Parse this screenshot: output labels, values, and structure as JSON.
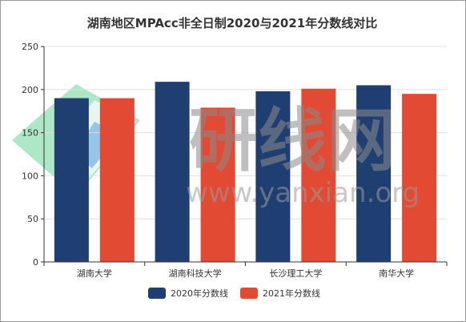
{
  "chart_data": {
    "type": "bar",
    "title": "湖南地区MPAcc非全日制2020与2021年分数线对比",
    "categories": [
      "湖南大学",
      "湖南科技大学",
      "长沙理工大学",
      "南华大学"
    ],
    "series": [
      {
        "name": "2020年分数线",
        "values": [
          190,
          209,
          198,
          205
        ],
        "color": "#1f3f73"
      },
      {
        "name": "2021年分数线",
        "values": [
          190,
          179,
          201,
          195
        ],
        "color": "#e24a33"
      }
    ],
    "ylim": [
      0,
      250
    ],
    "yticks": [
      0,
      50,
      100,
      150,
      200,
      250
    ],
    "grid": true,
    "legend": "bottom-center"
  },
  "watermark": {
    "text": "研线网",
    "url": "www.yanxian.org",
    "logo_colors": [
      "#3cbf7a",
      "#1e7fbf"
    ]
  }
}
